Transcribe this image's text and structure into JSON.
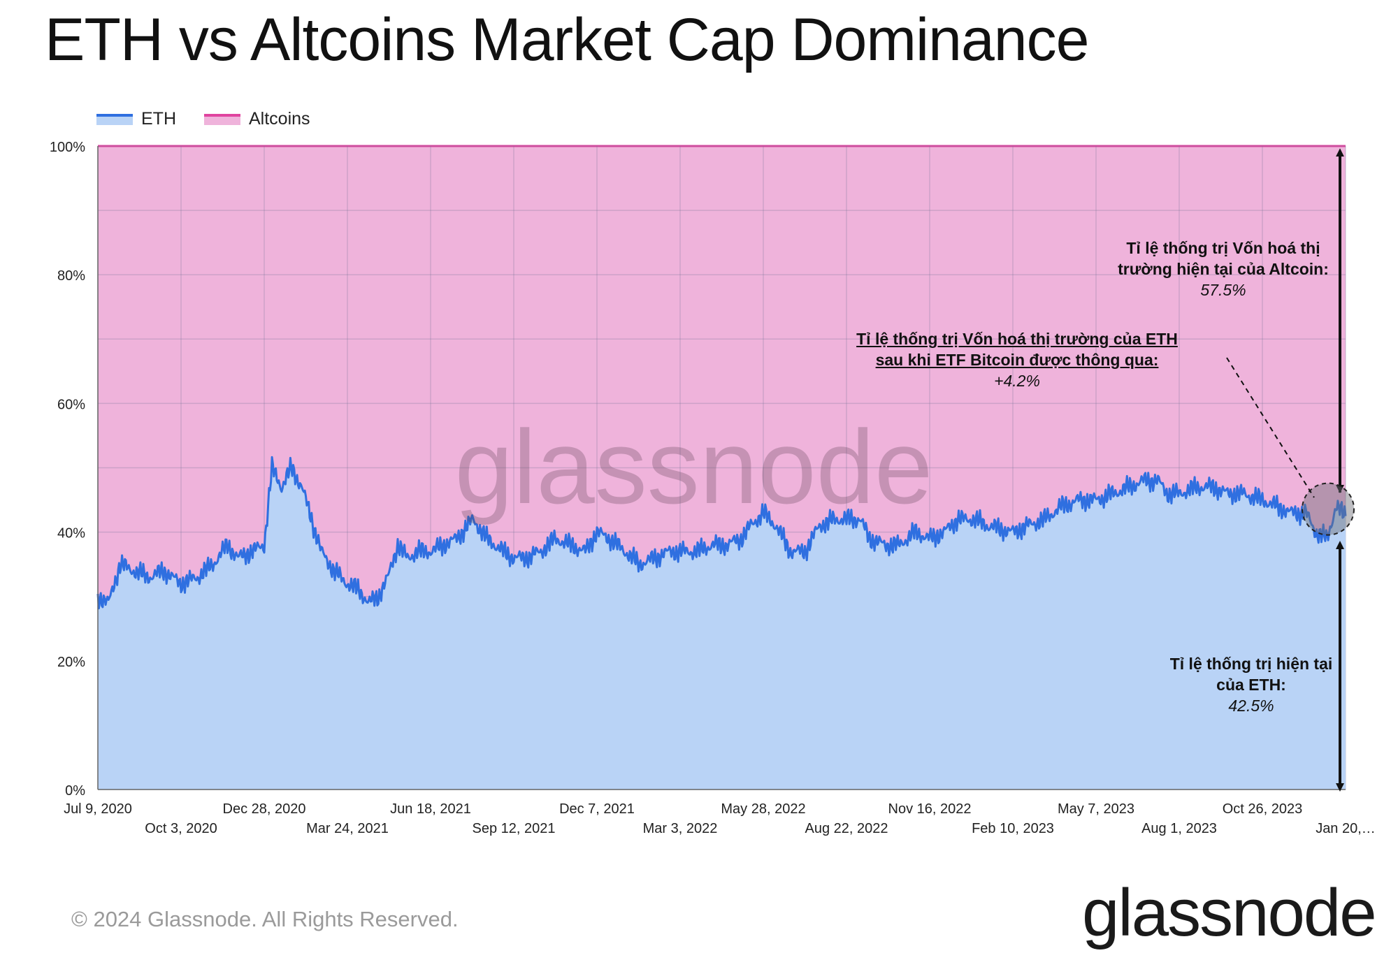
{
  "title": "ETH vs Altcoins Market Cap Dominance",
  "legend": [
    {
      "label": "ETH",
      "color": "#2f6fe0"
    },
    {
      "label": "Altcoins",
      "color": "#e0449f"
    }
  ],
  "annotations": {
    "altcoin_line1": "Tỉ lệ thống trị Vốn hoá thị",
    "altcoin_line2": "trường hiện tại của  Altcoin:",
    "altcoin_value": "57.5%",
    "etf_line1": "Tỉ lệ thống trị Vốn hoá thị trường của ETH",
    "etf_line2": "sau khi ETF Bitcoin được thông qua:",
    "etf_value": "+4.2%",
    "eth_line1": "Tỉ lệ thống trị hiện tại",
    "eth_line2": "của ETH:",
    "eth_value": "42.5%"
  },
  "watermark": "glassnode",
  "footer": {
    "copyright": "© 2024 Glassnode. All Rights Reserved.",
    "logo": "glassnode"
  },
  "chart_data": {
    "type": "area",
    "x_start": "2020-07-09",
    "x_end": "2024-01-20",
    "ylim": [
      0,
      100
    ],
    "y_ticks": [
      "0%",
      "20%",
      "40%",
      "60%",
      "80%",
      "100%"
    ],
    "x_ticks": [
      {
        "date": "2020-07-09",
        "label": "Jul 9, 2020"
      },
      {
        "date": "2020-10-03",
        "label": "Oct 3, 2020"
      },
      {
        "date": "2020-12-28",
        "label": "Dec 28, 2020"
      },
      {
        "date": "2021-03-24",
        "label": "Mar 24, 2021"
      },
      {
        "date": "2021-06-18",
        "label": "Jun 18, 2021"
      },
      {
        "date": "2021-09-12",
        "label": "Sep 12, 2021"
      },
      {
        "date": "2021-12-07",
        "label": "Dec 7, 2021"
      },
      {
        "date": "2022-03-03",
        "label": "Mar 3, 2022"
      },
      {
        "date": "2022-05-28",
        "label": "May 28, 2022"
      },
      {
        "date": "2022-08-22",
        "label": "Aug 22, 2022"
      },
      {
        "date": "2022-11-16",
        "label": "Nov 16, 2022"
      },
      {
        "date": "2023-02-10",
        "label": "Feb 10, 2023"
      },
      {
        "date": "2023-05-07",
        "label": "May 7, 2023"
      },
      {
        "date": "2023-08-01",
        "label": "Aug 1, 2023"
      },
      {
        "date": "2023-10-26",
        "label": "Oct 26, 2023"
      },
      {
        "date": "2024-01-20",
        "label": "Jan 20,…"
      }
    ],
    "grid": true,
    "legend_position": "top-left",
    "series": [
      {
        "name": "ETH",
        "color": "#2f6fe0",
        "fill": "#b9d3f6",
        "points": [
          [
            "2020-07-09",
            30
          ],
          [
            "2020-07-20",
            29
          ],
          [
            "2020-08-01",
            35
          ],
          [
            "2020-08-15",
            34
          ],
          [
            "2020-09-01",
            33
          ],
          [
            "2020-09-15",
            34
          ],
          [
            "2020-10-03",
            32
          ],
          [
            "2020-10-20",
            33
          ],
          [
            "2020-11-05",
            35
          ],
          [
            "2020-11-20",
            38
          ],
          [
            "2020-12-01",
            36
          ],
          [
            "2020-12-15",
            37
          ],
          [
            "2020-12-28",
            38
          ],
          [
            "2021-01-05",
            50
          ],
          [
            "2021-01-15",
            47
          ],
          [
            "2021-01-25",
            50
          ],
          [
            "2021-02-05",
            47
          ],
          [
            "2021-02-15",
            42
          ],
          [
            "2021-02-25",
            37
          ],
          [
            "2021-03-10",
            34
          ],
          [
            "2021-03-24",
            32
          ],
          [
            "2021-04-05",
            31
          ],
          [
            "2021-04-15",
            29
          ],
          [
            "2021-04-25",
            30
          ],
          [
            "2021-05-05",
            33
          ],
          [
            "2021-05-15",
            38
          ],
          [
            "2021-05-25",
            36
          ],
          [
            "2021-06-05",
            37
          ],
          [
            "2021-06-18",
            37
          ],
          [
            "2021-07-01",
            38
          ],
          [
            "2021-07-15",
            39
          ],
          [
            "2021-08-01",
            42
          ],
          [
            "2021-08-15",
            39
          ],
          [
            "2021-09-01",
            37
          ],
          [
            "2021-09-12",
            36
          ],
          [
            "2021-09-25",
            36
          ],
          [
            "2021-10-10",
            37
          ],
          [
            "2021-10-25",
            39
          ],
          [
            "2021-11-10",
            38
          ],
          [
            "2021-11-25",
            37
          ],
          [
            "2021-12-07",
            40
          ],
          [
            "2021-12-20",
            39
          ],
          [
            "2022-01-05",
            37
          ],
          [
            "2022-01-20",
            35
          ],
          [
            "2022-02-05",
            36
          ],
          [
            "2022-02-20",
            37
          ],
          [
            "2022-03-03",
            37
          ],
          [
            "2022-03-20",
            37
          ],
          [
            "2022-04-05",
            38
          ],
          [
            "2022-04-20",
            38
          ],
          [
            "2022-05-05",
            39
          ],
          [
            "2022-05-15",
            41
          ],
          [
            "2022-05-28",
            43
          ],
          [
            "2022-06-10",
            41
          ],
          [
            "2022-06-25",
            37
          ],
          [
            "2022-07-10",
            37
          ],
          [
            "2022-07-25",
            41
          ],
          [
            "2022-08-10",
            42
          ],
          [
            "2022-08-22",
            42
          ],
          [
            "2022-09-05",
            42
          ],
          [
            "2022-09-15",
            39
          ],
          [
            "2022-10-01",
            38
          ],
          [
            "2022-10-15",
            38
          ],
          [
            "2022-11-01",
            40
          ],
          [
            "2022-11-16",
            39
          ],
          [
            "2022-12-01",
            40
          ],
          [
            "2022-12-15",
            42
          ],
          [
            "2023-01-01",
            42
          ],
          [
            "2023-01-15",
            41
          ],
          [
            "2023-02-10",
            40
          ],
          [
            "2023-02-25",
            41
          ],
          [
            "2023-03-15",
            42
          ],
          [
            "2023-04-01",
            44
          ],
          [
            "2023-04-20",
            45
          ],
          [
            "2023-05-07",
            45
          ],
          [
            "2023-05-25",
            46
          ],
          [
            "2023-06-10",
            47
          ],
          [
            "2023-06-25",
            48
          ],
          [
            "2023-07-10",
            48
          ],
          [
            "2023-07-20",
            46
          ],
          [
            "2023-08-01",
            46
          ],
          [
            "2023-08-20",
            47
          ],
          [
            "2023-09-05",
            47
          ],
          [
            "2023-09-20",
            46
          ],
          [
            "2023-10-05",
            46
          ],
          [
            "2023-10-26",
            45
          ],
          [
            "2023-11-10",
            44
          ],
          [
            "2023-11-25",
            43
          ],
          [
            "2023-12-10",
            43
          ],
          [
            "2023-12-20",
            40
          ],
          [
            "2024-01-01",
            39
          ],
          [
            "2024-01-10",
            44
          ],
          [
            "2024-01-20",
            42.5
          ]
        ]
      },
      {
        "name": "Altcoins",
        "color": "#e0449f",
        "fill": "#efb3db",
        "stacked_to": 100
      }
    ]
  }
}
